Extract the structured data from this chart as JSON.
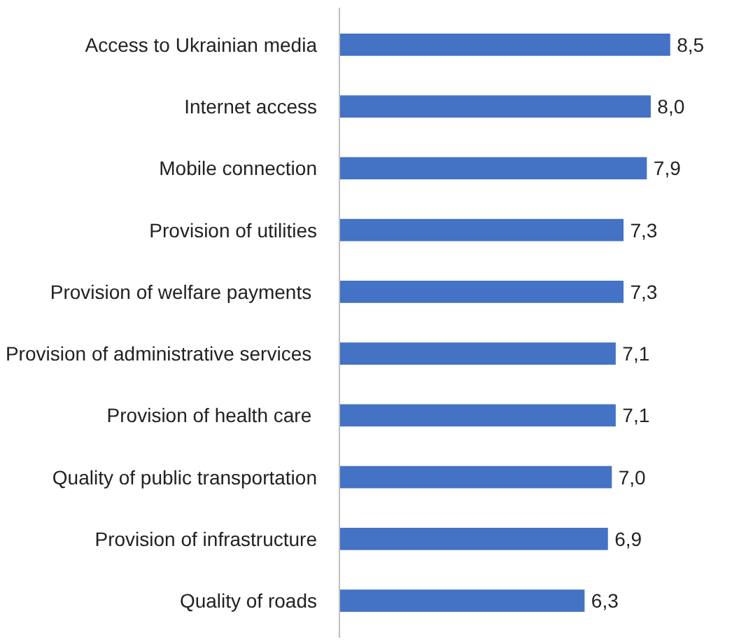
{
  "chart_data": {
    "type": "bar",
    "orientation": "horizontal",
    "categories": [
      "Access to Ukrainian media",
      "Internet access",
      "Mobile connection",
      "Provision of utilities",
      "Provision of  welfare payments",
      "Provision of  administrative services",
      "Provision of  health care",
      "Quality of public transportation",
      "Provision of infrastructure",
      "Quality of roads"
    ],
    "values": [
      8.5,
      8.0,
      7.9,
      7.3,
      7.3,
      7.1,
      7.1,
      7.0,
      6.9,
      6.3
    ],
    "value_labels": [
      "8,5",
      "8,0",
      "7,9",
      "7,3",
      "7,3",
      "7,1",
      "7,1",
      "7,0",
      "6,9",
      "6,3"
    ],
    "color": "#4472c4"
  }
}
